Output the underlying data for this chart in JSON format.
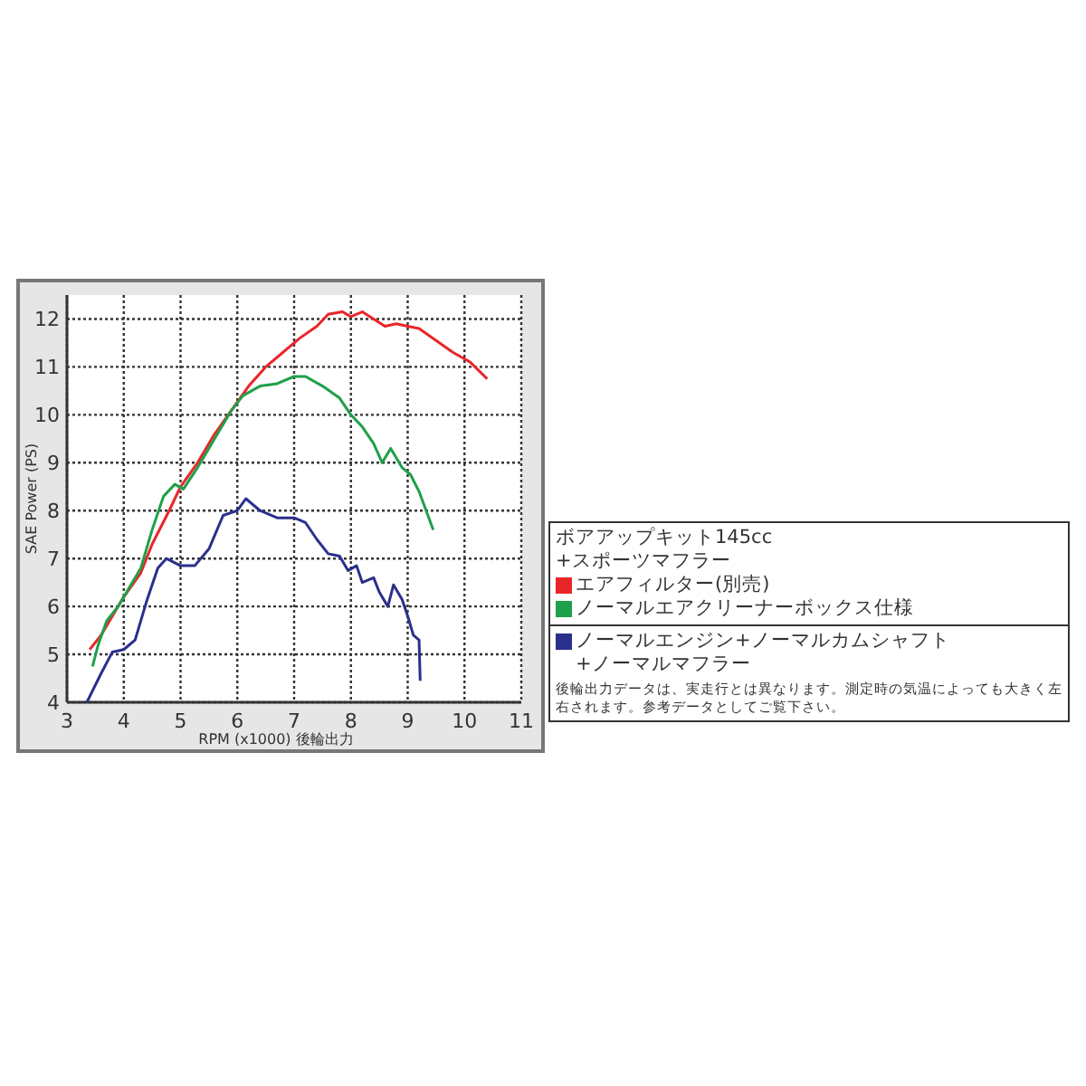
{
  "chart_data": {
    "type": "line",
    "xlabel": "RPM (x1000) 後輪出力",
    "ylabel": "SAE Power (PS)",
    "legend_title": "ボアアップキット145cc\n+スポーツマフラー",
    "xlim": [
      3,
      11
    ],
    "xticks": [
      3,
      4,
      5,
      6,
      7,
      8,
      9,
      10,
      11
    ],
    "ylim": [
      4,
      12.5
    ],
    "yticks": [
      4,
      5,
      6,
      7,
      8,
      9,
      10,
      11,
      12
    ],
    "grid": true,
    "legend": "right",
    "marker": "none",
    "line_style": "solid",
    "series": [
      {
        "name": "エアフィルター(別売)",
        "color": "#e8262a",
        "x": [
          3.4,
          3.6,
          3.8,
          4.0,
          4.3,
          4.5,
          4.8,
          5.0,
          5.3,
          5.6,
          5.9,
          6.2,
          6.5,
          6.8,
          7.1,
          7.4,
          7.6,
          7.85,
          8.0,
          8.2,
          8.4,
          8.6,
          8.8,
          9.0,
          9.2,
          9.5,
          9.8,
          10.1,
          10.4
        ],
        "values": [
          5.1,
          5.4,
          5.8,
          6.2,
          6.7,
          7.3,
          8.0,
          8.5,
          9.0,
          9.6,
          10.1,
          10.6,
          11.0,
          11.3,
          11.6,
          11.85,
          12.1,
          12.15,
          12.05,
          12.15,
          12.0,
          11.85,
          11.9,
          11.85,
          11.8,
          11.55,
          11.3,
          11.1,
          10.75
        ]
      },
      {
        "name": "ノーマルエアクリーナーボックス仕様",
        "color": "#1fa04a",
        "x": [
          3.45,
          3.55,
          3.7,
          3.9,
          4.1,
          4.3,
          4.5,
          4.7,
          4.9,
          5.05,
          5.3,
          5.6,
          5.9,
          6.1,
          6.4,
          6.7,
          7.0,
          7.2,
          7.5,
          7.8,
          8.0,
          8.2,
          8.4,
          8.55,
          8.7,
          8.9,
          9.05,
          9.2,
          9.45
        ],
        "values": [
          4.75,
          5.2,
          5.7,
          6.0,
          6.4,
          6.8,
          7.6,
          8.3,
          8.55,
          8.45,
          8.9,
          9.5,
          10.1,
          10.4,
          10.6,
          10.65,
          10.8,
          10.8,
          10.6,
          10.35,
          10.0,
          9.75,
          9.4,
          9.0,
          9.3,
          8.9,
          8.75,
          8.4,
          7.6
        ]
      },
      {
        "name": "ノーマルエンジン+ノーマルカムシャフト\n+ノーマルマフラー",
        "color": "#2b2f8c",
        "x": [
          3.35,
          3.6,
          3.8,
          4.0,
          4.2,
          4.4,
          4.6,
          4.75,
          5.0,
          5.25,
          5.5,
          5.75,
          6.0,
          6.15,
          6.4,
          6.7,
          7.0,
          7.2,
          7.4,
          7.6,
          7.8,
          7.95,
          8.1,
          8.2,
          8.4,
          8.5,
          8.65,
          8.75,
          8.9,
          9.0,
          9.1,
          9.2,
          9.22
        ],
        "values": [
          4.0,
          4.6,
          5.05,
          5.1,
          5.3,
          6.1,
          6.8,
          7.0,
          6.85,
          6.85,
          7.2,
          7.9,
          8.0,
          8.25,
          8.0,
          7.85,
          7.85,
          7.75,
          7.4,
          7.1,
          7.05,
          6.75,
          6.85,
          6.5,
          6.6,
          6.3,
          6.0,
          6.45,
          6.15,
          5.8,
          5.4,
          5.3,
          4.45
        ]
      }
    ],
    "annotations": [
      "後輪出力データは、実走行とは異なります。測定時の気温によっても大きく左右されます。参考データとしてご覧下さい。"
    ]
  }
}
